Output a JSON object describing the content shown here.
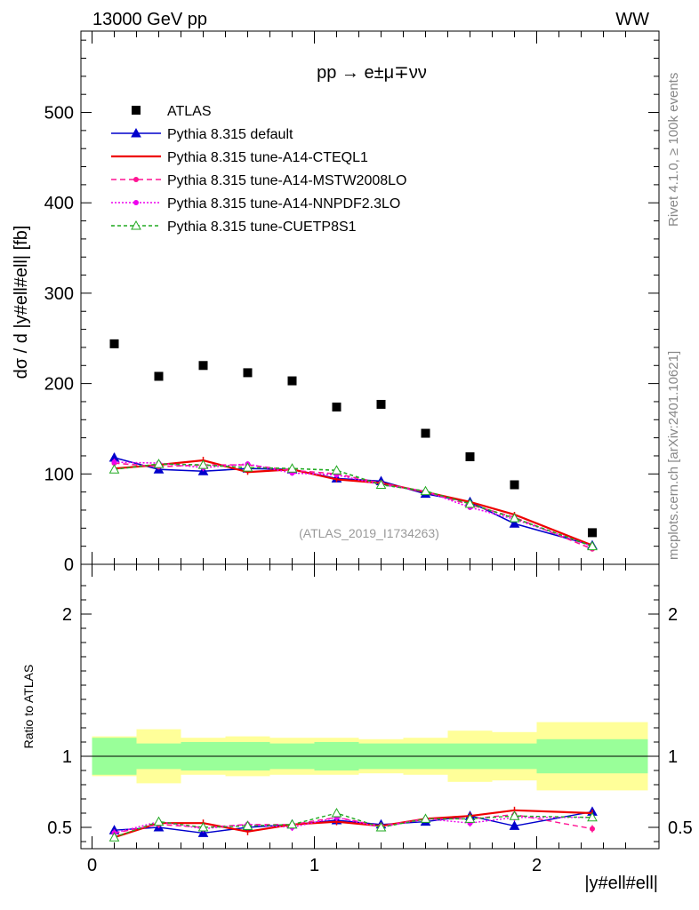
{
  "header": {
    "left_label": "13000 GeV pp",
    "right_label": "WW"
  },
  "side_labels": {
    "rivet": "Rivet 4.1.0, ≥ 100k events",
    "mcplots": "mcplots.cern.ch [arXiv:2401.10621]"
  },
  "main_plot": {
    "process_title": "pp → e±μ∓νν",
    "ylabel": "dσ / d |y#ell#ell| [fb]",
    "analysis_tag": "(ATLAS_2019_I1734263)",
    "ylim": [
      0,
      590
    ],
    "yticks": [
      0,
      100,
      200,
      300,
      400,
      500
    ],
    "ytick_labels": [
      "0",
      "100",
      "200",
      "300",
      "400",
      "500"
    ]
  },
  "ratio_plot": {
    "ylabel": "Ratio to ATLAS",
    "xlabel": "|y#ell#ell|",
    "ylim": [
      0.35,
      2.35
    ],
    "yticks": [
      0.5,
      1,
      2
    ],
    "ytick_labels": [
      "0.5",
      "1",
      "2"
    ]
  },
  "chart_data": {
    "type": "scatter",
    "xlim": [
      -0.05,
      2.55
    ],
    "xticks": [
      0,
      1,
      2
    ],
    "xtick_labels": [
      "0",
      "1",
      "2"
    ],
    "bin_edges": [
      0,
      0.2,
      0.4,
      0.6,
      0.8,
      1.0,
      1.2,
      1.4,
      1.6,
      1.8,
      2.0,
      2.5
    ],
    "x": [
      0.1,
      0.3,
      0.5,
      0.7,
      0.9,
      1.1,
      1.3,
      1.5,
      1.7,
      1.9,
      2.25
    ],
    "data": {
      "name": "ATLAS",
      "values": [
        244,
        208,
        220,
        212,
        203,
        174,
        177,
        145,
        119,
        88,
        35
      ],
      "stat_band": [
        0.13,
        0.09,
        0.1,
        0.1,
        0.09,
        0.1,
        0.09,
        0.09,
        0.09,
        0.09,
        0.12
      ],
      "total_band": [
        0.14,
        0.19,
        0.13,
        0.14,
        0.13,
        0.13,
        0.12,
        0.13,
        0.18,
        0.17,
        0.24
      ]
    },
    "series": [
      {
        "name": "Pythia 8.315 default",
        "color": "#0000cc",
        "dash": "",
        "marker": "triangle-filled",
        "values": [
          118,
          105,
          103,
          106,
          105,
          95,
          92,
          78,
          69,
          45,
          21
        ],
        "errors": [
          5,
          3,
          4,
          3,
          3,
          3,
          3,
          3,
          3,
          3,
          2
        ]
      },
      {
        "name": "Pythia 8.315 tune-A14-CTEQL1",
        "color": "#ee0000",
        "dash": "",
        "marker": "none",
        "values": [
          106,
          110,
          115,
          102,
          105,
          94,
          90,
          80,
          69,
          55,
          21
        ],
        "errors": [
          4,
          3,
          4,
          3,
          3,
          3,
          3,
          3,
          3,
          3,
          2
        ]
      },
      {
        "name": "Pythia 8.315 tune-A14-MSTW2008LO",
        "color": "#ff1493",
        "dash": "6,4",
        "marker": "dot",
        "values": [
          112,
          108,
          110,
          110,
          104,
          100,
          90,
          80,
          66,
          52,
          17
        ],
        "errors": [
          4,
          3,
          4,
          3,
          3,
          3,
          3,
          3,
          3,
          3,
          2
        ]
      },
      {
        "name": "Pythia 8.315 tune-A14-NNPDF2.3LO",
        "color": "#ee00ee",
        "dash": "2,2",
        "marker": "dot",
        "values": [
          113,
          112,
          107,
          111,
          101,
          99,
          88,
          81,
          63,
          50,
          20
        ],
        "errors": [
          4,
          3,
          4,
          3,
          3,
          3,
          3,
          3,
          3,
          3,
          2
        ]
      },
      {
        "name": "Pythia 8.315 tune-CUETP8S1",
        "color": "#22aa22",
        "dash": "4,3",
        "marker": "triangle-open",
        "values": [
          105,
          111,
          110,
          107,
          106,
          104,
          88,
          81,
          67,
          51,
          20
        ],
        "errors": [
          4,
          3,
          4,
          3,
          3,
          3,
          3,
          3,
          3,
          3,
          2
        ]
      }
    ],
    "ratios": [
      [
        0.48,
        0.5,
        0.46,
        0.5,
        0.52,
        0.55,
        0.52,
        0.54,
        0.58,
        0.51,
        0.61
      ],
      [
        0.43,
        0.53,
        0.53,
        0.47,
        0.52,
        0.54,
        0.51,
        0.56,
        0.58,
        0.62,
        0.6
      ],
      [
        0.46,
        0.52,
        0.5,
        0.52,
        0.52,
        0.57,
        0.51,
        0.56,
        0.56,
        0.59,
        0.49
      ],
      [
        0.46,
        0.54,
        0.49,
        0.52,
        0.5,
        0.57,
        0.5,
        0.56,
        0.53,
        0.57,
        0.57
      ],
      [
        0.43,
        0.54,
        0.5,
        0.51,
        0.52,
        0.6,
        0.5,
        0.56,
        0.56,
        0.58,
        0.57
      ]
    ]
  }
}
